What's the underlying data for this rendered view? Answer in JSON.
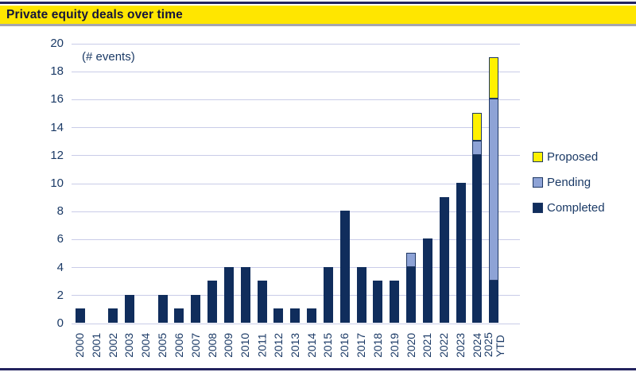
{
  "header": {
    "title": "Private equity deals over time"
  },
  "colors": {
    "navy": "#102D5C",
    "pending_blue": "#8EA3D6",
    "proposed_yellow": "#FFF100",
    "gridline": "#C9CCE8",
    "title_bg": "#FFE600",
    "title_text": "#14143C",
    "axis_text": "#1B3A66",
    "rule": "#23235F",
    "title_shadow": "#A6A6AE",
    "segment_border": "#1F3864"
  },
  "chart_data": {
    "type": "bar",
    "stacked": true,
    "title": "Private equity deals over time",
    "units_label": "(# events)",
    "xlabel": "",
    "ylabel": "",
    "ylim": [
      0,
      20
    ],
    "ytick_step": 2,
    "grid": true,
    "legend_position": "right",
    "categories": [
      "2000",
      "2001",
      "2002",
      "2003",
      "2004",
      "2005",
      "2006",
      "2007",
      "2008",
      "2009",
      "2010",
      "2011",
      "2012",
      "2013",
      "2014",
      "2015",
      "2016",
      "2017",
      "2018",
      "2019",
      "2020",
      "2021",
      "2022",
      "2023",
      "2024",
      "2025 YTD"
    ],
    "series": [
      {
        "name": "Completed",
        "color": "#102D5C",
        "values": [
          1,
          0,
          1,
          2,
          0,
          2,
          1,
          2,
          3,
          4,
          4,
          3,
          1,
          1,
          1,
          4,
          8,
          4,
          3,
          3,
          4,
          6,
          9,
          10,
          12,
          3
        ]
      },
      {
        "name": "Pending",
        "color": "#8EA3D6",
        "values": [
          0,
          0,
          0,
          0,
          0,
          0,
          0,
          0,
          0,
          0,
          0,
          0,
          0,
          0,
          0,
          0,
          0,
          0,
          0,
          0,
          1,
          0,
          0,
          0,
          1,
          13
        ]
      },
      {
        "name": "Proposed",
        "color": "#FFF100",
        "values": [
          0,
          0,
          0,
          0,
          0,
          0,
          0,
          0,
          0,
          0,
          0,
          0,
          0,
          0,
          0,
          0,
          0,
          0,
          0,
          0,
          0,
          0,
          0,
          0,
          2,
          3
        ]
      }
    ],
    "legend": [
      {
        "label": "Proposed",
        "color": "#FFF100"
      },
      {
        "label": "Pending",
        "color": "#8EA3D6"
      },
      {
        "label": "Completed",
        "color": "#102D5C"
      }
    ]
  }
}
